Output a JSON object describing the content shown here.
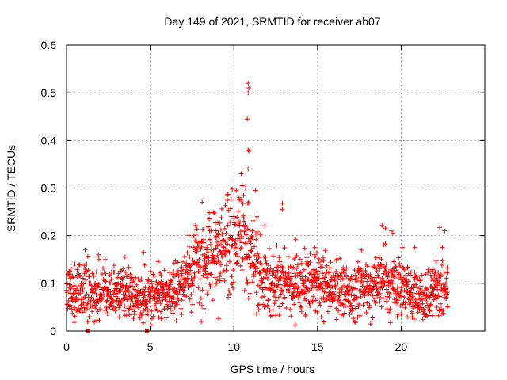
{
  "chart_data": {
    "type": "scatter",
    "title": "Day 149 of 2021, SRMTID for receiver ab07",
    "xlabel": "GPS time / hours",
    "ylabel": "SRMTID / TECUs",
    "xlim": [
      0,
      25
    ],
    "ylim": [
      0,
      0.6
    ],
    "xticks": [
      0,
      5,
      10,
      15,
      20
    ],
    "xtick_labels": [
      "0",
      "5",
      "10",
      "15",
      "20"
    ],
    "yticks": [
      0,
      0.1,
      0.2,
      0.3,
      0.4,
      0.5,
      0.6
    ],
    "ytick_labels": [
      "0",
      "0.1",
      "0.2",
      "0.3",
      "0.4",
      "0.5",
      "0.6"
    ],
    "grid": true,
    "marker": "+",
    "color": "#ff0000",
    "data_range_hours": [
      0,
      22.8
    ],
    "trend_hours": [
      0,
      1,
      2,
      3,
      4,
      5,
      6,
      7,
      7.5,
      8,
      9,
      10,
      10.5,
      11,
      11.5,
      12,
      13,
      14,
      15,
      16,
      17,
      18,
      19,
      20,
      21,
      21.5,
      22,
      22.8
    ],
    "trend_values": [
      0.075,
      0.085,
      0.07,
      0.08,
      0.07,
      0.075,
      0.08,
      0.1,
      0.13,
      0.14,
      0.17,
      0.19,
      0.2,
      0.17,
      0.14,
      0.1,
      0.1,
      0.1,
      0.1,
      0.09,
      0.085,
      0.09,
      0.11,
      0.09,
      0.08,
      0.065,
      0.095,
      0.09
    ],
    "peak_points": [
      {
        "x": 10.85,
        "y": 0.52
      },
      {
        "x": 10.9,
        "y": 0.51
      },
      {
        "x": 10.85,
        "y": 0.5
      },
      {
        "x": 10.8,
        "y": 0.445
      },
      {
        "x": 10.85,
        "y": 0.38
      },
      {
        "x": 10.9,
        "y": 0.378
      },
      {
        "x": 10.85,
        "y": 0.34
      },
      {
        "x": 10.5,
        "y": 0.305
      },
      {
        "x": 10.7,
        "y": 0.3
      },
      {
        "x": 9.9,
        "y": 0.298
      },
      {
        "x": 11.3,
        "y": 0.295
      },
      {
        "x": 8.1,
        "y": 0.27
      },
      {
        "x": 12.9,
        "y": 0.268
      },
      {
        "x": 12.9,
        "y": 0.255
      },
      {
        "x": 22.3,
        "y": 0.217
      },
      {
        "x": 22.6,
        "y": 0.21
      },
      {
        "x": 19.5,
        "y": 0.205
      },
      {
        "x": 3.5,
        "y": 0.155
      },
      {
        "x": 4.6,
        "y": 0.165
      },
      {
        "x": 14.8,
        "y": 0.16
      }
    ],
    "zero_points": [
      {
        "x": 1.3,
        "y": 0
      },
      {
        "x": 4.8,
        "y": 0
      }
    ],
    "seed": 149
  }
}
